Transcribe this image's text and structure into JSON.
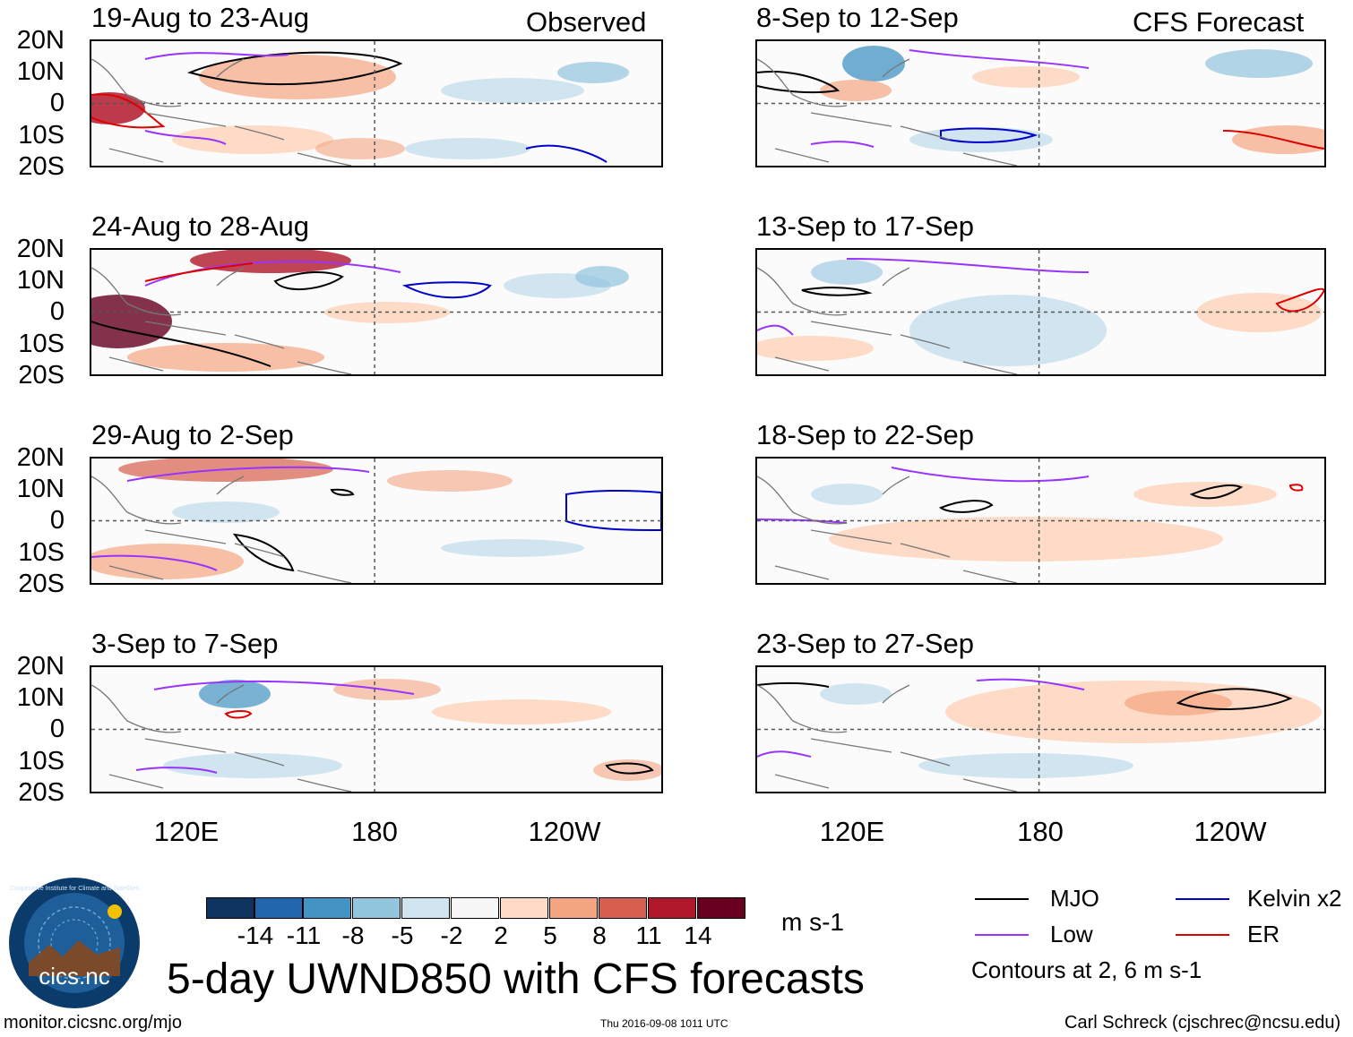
{
  "headers": {
    "observed": "Observed",
    "forecast": "CFS Forecast"
  },
  "panels": {
    "observed": [
      "19-Aug to 23-Aug",
      "24-Aug to 28-Aug",
      "29-Aug to 2-Sep",
      "3-Sep to 7-Sep"
    ],
    "forecast": [
      "8-Sep to 12-Sep",
      "13-Sep to 17-Sep",
      "18-Sep to 22-Sep",
      "23-Sep to 27-Sep"
    ]
  },
  "axes": {
    "lat_labels": [
      "20N",
      "10N",
      "0",
      "10S",
      "20S"
    ],
    "lon_labels": [
      "120E",
      "180",
      "120W"
    ]
  },
  "colorbar": {
    "levels": [
      "-14",
      "-11",
      "-8",
      "-5",
      "-2",
      "2",
      "5",
      "8",
      "11",
      "14"
    ],
    "colors": [
      "#0d3461",
      "#2166ac",
      "#4393c3",
      "#92c5de",
      "#d1e5f0",
      "#f7f7f7",
      "#fddbc7",
      "#f4a582",
      "#d6604d",
      "#b2182b",
      "#67001f"
    ],
    "units": "m s-1"
  },
  "legend": {
    "items": [
      {
        "label": "MJO",
        "color": "#000000"
      },
      {
        "label": "Kelvin x2",
        "color": "#0000cc"
      },
      {
        "label": "Low",
        "color": "#9933ff"
      },
      {
        "label": "ER",
        "color": "#dd0000"
      }
    ],
    "note": "Contours at 2, 6 m s-1"
  },
  "title": "5-day UWND850 with CFS forecasts",
  "logo": {
    "text": "cics.nc",
    "ring_text": "Cooperative Institute for Climate and Satellites"
  },
  "footer": {
    "url": "monitor.cicsnc.org/mjo",
    "timestamp": "Thu 2016-09-08 1011 UTC",
    "author": "Carl Schreck (cjschrec@ncsu.edu)"
  }
}
